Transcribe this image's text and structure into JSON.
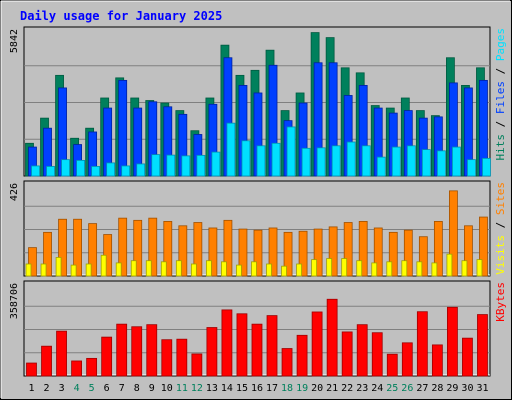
{
  "chart_data": {
    "type": "bar",
    "title": "Daily usage for January 2025",
    "colors": {
      "background": "#c0c0c0",
      "title": "#0000ff",
      "hits": "#00805c",
      "files": "#0040ff",
      "pages": "#00e0ff",
      "visits": "#ffff00",
      "sites": "#ff8000",
      "kbytes": "#ff0000",
      "weekday_label": "#000000",
      "weekend_label": "#00805c"
    },
    "categories": [
      "1",
      "2",
      "3",
      "4",
      "5",
      "6",
      "7",
      "8",
      "9",
      "10",
      "11",
      "12",
      "13",
      "14",
      "15",
      "16",
      "17",
      "18",
      "19",
      "20",
      "21",
      "22",
      "23",
      "24",
      "25",
      "26",
      "27",
      "28",
      "29",
      "30",
      "31"
    ],
    "weekend_days": [
      4,
      5,
      11,
      12,
      18,
      19,
      25,
      26
    ],
    "panels": [
      {
        "id": "hits-files-pages",
        "ymax_label": "5842",
        "ymax": 5842,
        "legend": [
          {
            "text": "Hits",
            "color": "#00805c"
          },
          {
            "text": " / ",
            "color": "#000000"
          },
          {
            "text": "Files",
            "color": "#0040ff"
          },
          {
            "text": " / ",
            "color": "#000000"
          },
          {
            "text": "Pages",
            "color": "#00e0ff"
          }
        ],
        "series": [
          {
            "key": "hits",
            "values": [
              1300,
              2300,
              4000,
              1500,
              1900,
              3100,
              3900,
              3100,
              3000,
              2900,
              2600,
              1800,
              3100,
              5200,
              4000,
              4200,
              5000,
              2600,
              3300,
              5700,
              5500,
              4300,
              4100,
              2800,
              2700,
              3100,
              2600,
              2400,
              4700,
              3600,
              4300
            ]
          },
          {
            "key": "files",
            "values": [
              1150,
              1900,
              3500,
              1250,
              1750,
              2700,
              3800,
              2700,
              2950,
              2750,
              2450,
              1650,
              2850,
              4700,
              3600,
              3300,
              4400,
              2200,
              2900,
              4500,
              4500,
              3200,
              3600,
              2700,
              2500,
              2600,
              2300,
              2350,
              3700,
              3500,
              3800
            ]
          },
          {
            "key": "pages",
            "values": [
              400,
              380,
              650,
              620,
              380,
              520,
              400,
              480,
              850,
              830,
              800,
              820,
              950,
              2100,
              1400,
              1200,
              1300,
              1950,
              1100,
              1120,
              1200,
              1350,
              1200,
              750,
              1150,
              1200,
              1050,
              1000,
              1150,
              650,
              700
            ]
          }
        ]
      },
      {
        "id": "sites-visits",
        "ymax_label": "426",
        "ymax": 426,
        "legend": [
          {
            "text": "Visits",
            "color": "#ffff00"
          },
          {
            "text": " / ",
            "color": "#000000"
          },
          {
            "text": "Sites",
            "color": "#ff8000"
          }
        ],
        "series": [
          {
            "key": "sites",
            "values": [
              130,
              200,
              260,
              260,
              240,
              190,
              265,
              255,
              265,
              250,
              230,
              245,
              220,
              255,
              215,
              210,
              220,
              200,
              205,
              215,
              225,
              245,
              250,
              220,
              200,
              210,
              180,
              250,
              390,
              230,
              270
            ]
          },
          {
            "key": "visits",
            "values": [
              55,
              55,
              85,
              50,
              55,
              95,
              60,
              70,
              70,
              65,
              70,
              55,
              70,
              65,
              50,
              65,
              55,
              45,
              55,
              75,
              80,
              80,
              70,
              60,
              65,
              70,
              65,
              60,
              100,
              70,
              75
            ]
          }
        ]
      },
      {
        "id": "kbytes",
        "ymax_label": "358706",
        "ymax": 358706,
        "legend": [
          {
            "text": "KBytes",
            "color": "#ff0000"
          }
        ],
        "series": [
          {
            "key": "kbytes",
            "values": [
              50000,
              115000,
              173000,
              58000,
              68000,
              150000,
              200000,
              190000,
              198000,
              140000,
              142000,
              85000,
              187000,
              255000,
              240000,
              200000,
              233000,
              106000,
              157000,
              247000,
              296000,
              170000,
              198000,
              167000,
              84000,
              128000,
              248000,
              120000,
              265000,
              146000,
              237000
            ]
          }
        ]
      }
    ]
  }
}
